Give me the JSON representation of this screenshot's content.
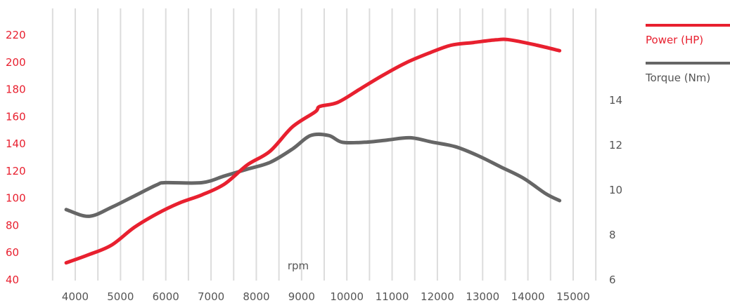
{
  "chart_data": {
    "type": "line",
    "xlabel": "rpm",
    "x_ticks": [
      4000,
      5000,
      6000,
      7000,
      8000,
      9000,
      10000,
      11000,
      12000,
      13000,
      14000,
      15000
    ],
    "xlim": [
      3600,
      15400
    ],
    "y_left_ticks": [
      40,
      60,
      80,
      100,
      120,
      140,
      160,
      180,
      200,
      220
    ],
    "y_left_lim": [
      40,
      220
    ],
    "y_right_ticks": [
      6,
      8,
      10,
      12,
      14
    ],
    "y_right_lim": [
      6,
      14
    ],
    "grid": "vertical",
    "legend_position": "right",
    "series": [
      {
        "name": "Power (HP)",
        "axis": "left",
        "color": "#e8202f",
        "x": [
          3800,
          4300,
          4800,
          5300,
          5800,
          6300,
          6800,
          7300,
          7800,
          8300,
          8800,
          9300,
          9400,
          9800,
          10300,
          10800,
          11300,
          11800,
          12300,
          12800,
          13300,
          13600,
          14200,
          14700
        ],
        "y": [
          52,
          58,
          65,
          78,
          88,
          96,
          102,
          110,
          124,
          134,
          152,
          163,
          167,
          170,
          180,
          190,
          199,
          206,
          212,
          214,
          216,
          216,
          212,
          208
        ]
      },
      {
        "name": "Torque (Nm)",
        "axis": "right",
        "color": "#666666",
        "x": [
          3800,
          4300,
          4800,
          5300,
          5800,
          6000,
          6800,
          7300,
          7800,
          8300,
          8800,
          9200,
          9600,
          9900,
          10400,
          10900,
          11400,
          11900,
          12400,
          12900,
          13400,
          13900,
          14400,
          14700
        ],
        "y": [
          9.1,
          8.8,
          9.2,
          9.7,
          10.2,
          10.3,
          10.3,
          10.6,
          10.9,
          11.2,
          11.8,
          12.4,
          12.4,
          12.1,
          12.1,
          12.2,
          12.3,
          12.1,
          11.9,
          11.5,
          11.0,
          10.5,
          9.8,
          9.5
        ]
      }
    ]
  }
}
